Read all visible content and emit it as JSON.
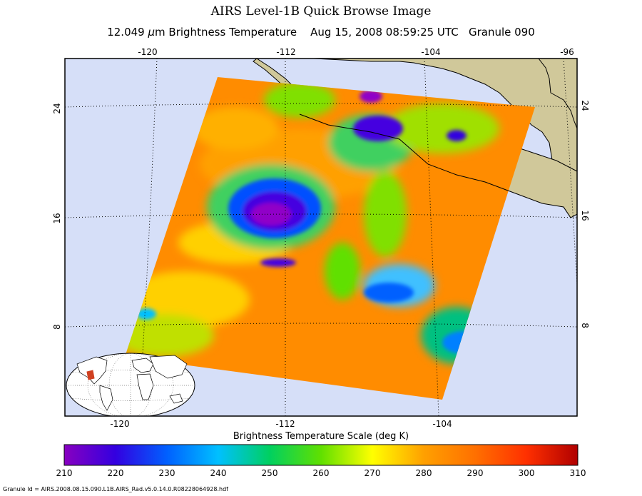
{
  "header": {
    "title": "AIRS Level-1B Quick Browse Image",
    "subtitle_parts": [
      "12.049 ",
      "μ",
      "m Brightness Temperature    Aug 15, 2008 08:59:25 UTC   Granule 090"
    ]
  },
  "map": {
    "lon_ticks_top": [
      "-120",
      "-112",
      "-104",
      "-96"
    ],
    "lon_ticks_bottom": [
      "-120",
      "-112",
      "-104"
    ],
    "lat_ticks_left": [
      "24",
      "16",
      "8"
    ],
    "lat_ticks_right": [
      "24",
      "16",
      "8"
    ],
    "colors": {
      "ocean": "#d6dff8",
      "land": "#d0c89a",
      "coast": "#000000",
      "grid": "#000000"
    }
  },
  "colorbar": {
    "title": "Brightness Temperature Scale (deg K)",
    "ticks": [
      "210",
      "220",
      "230",
      "240",
      "250",
      "260",
      "270",
      "280",
      "290",
      "300",
      "310"
    ],
    "range": [
      210,
      310
    ],
    "colors": [
      "#8800c0",
      "#3300e0",
      "#0060ff",
      "#00c0ff",
      "#00d060",
      "#60e000",
      "#ffff00",
      "#ffa000",
      "#ff7000",
      "#ff3000",
      "#b00000"
    ]
  },
  "footer": {
    "granule_id": "Granule Id = AIRS.2008.08.15.090.L1B.AIRS_Rad.v5.0.14.0.R08228064928.hdf"
  }
}
